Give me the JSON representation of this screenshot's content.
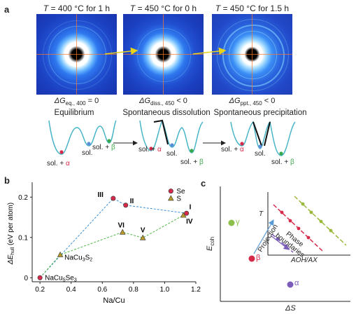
{
  "panel_a": {
    "label": "a",
    "conditions": [
      {
        "var": "T",
        "rest": " = 400 °C for 1 h"
      },
      {
        "var": "T",
        "rest": " = 450 °C for 0 h"
      },
      {
        "var": "T",
        "rest": " = 450 °C for 1.5 h"
      }
    ],
    "energy_labels": [
      {
        "main": "ΔG",
        "sub": "eq., 400",
        "tail": " = 0"
      },
      {
        "main": "ΔG",
        "sub": "diss., 450",
        "tail": " < 0"
      },
      {
        "main": "ΔG",
        "sub": "ppt., 450",
        "tail": " < 0"
      }
    ],
    "stages": [
      "Equilibrium",
      "Spontaneous dissolution",
      "Spontaneous precipitation"
    ],
    "well_labels": {
      "sol": "sol.",
      "sol_plus": "sol. + ",
      "alpha": "α",
      "beta": "β"
    },
    "colors": {
      "pattern_bg": "#1f57d6",
      "alpha": "#d62a4a",
      "beta": "#39a84a",
      "well": "#49b5c8"
    }
  },
  "panel_b": {
    "label": "b",
    "legend": [
      "Se",
      "S"
    ],
    "chart_data": {
      "type": "scatter",
      "xlabel": "Na/Cu",
      "ylabel": "ΔE_hull (eV per atom)",
      "ylabel_main": "ΔE",
      "ylabel_sub": "hull",
      "ylabel_tail": " (eV per atom)",
      "xlim": [
        0.15,
        1.2
      ],
      "ylim": [
        -0.01,
        0.23
      ],
      "xticks": [
        "0.2",
        "0.4",
        "0.6",
        "0.8",
        "1.0",
        "1.2"
      ],
      "yticks": [
        "0",
        "0.1",
        "0.2"
      ],
      "series": [
        {
          "name": "Se",
          "color": "#d62a4a",
          "points": [
            {
              "x": 0.2,
              "y": 0.0,
              "label": "NaCu5Se3"
            },
            {
              "x": 0.67,
              "y": 0.197,
              "label": "III"
            },
            {
              "x": 0.75,
              "y": 0.18,
              "label": "II"
            },
            {
              "x": 1.14,
              "y": 0.16,
              "label": "I"
            }
          ]
        },
        {
          "name": "S",
          "color": "#b89a2a",
          "points": [
            {
              "x": 0.33,
              "y": 0.057,
              "label": "NaCu3S2"
            },
            {
              "x": 0.73,
              "y": 0.113,
              "label": "VI"
            },
            {
              "x": 0.86,
              "y": 0.099,
              "label": "V"
            },
            {
              "x": 1.12,
              "y": 0.155,
              "label": "IV"
            }
          ]
        }
      ],
      "tie_lines": [
        {
          "color": "#3a8fd8",
          "points": [
            [
              0.2,
              0.0
            ],
            [
              0.67,
              0.197
            ],
            [
              0.75,
              0.18
            ],
            [
              1.14,
              0.16
            ]
          ]
        },
        {
          "color": "#52b84b",
          "points": [
            [
              0.2,
              0.0
            ],
            [
              0.33,
              0.057
            ],
            [
              0.73,
              0.113
            ],
            [
              0.86,
              0.099
            ],
            [
              1.12,
              0.155
            ]
          ]
        }
      ]
    },
    "formula_labels": {
      "se": {
        "p1": "NaCu",
        "s1": "5",
        "p2": "Se",
        "s2": "3"
      },
      "s": {
        "p1": "NaCu",
        "s1": "3",
        "p2": "S",
        "s2": "2"
      }
    }
  },
  "panel_c": {
    "label": "c",
    "xlabel": "ΔS",
    "ylabel": "E",
    "ylabel_sub": "coh",
    "phases": [
      "γ",
      "β",
      "α"
    ],
    "inset": {
      "xlabel": "AOH/AX",
      "ylabel": "T",
      "projection": "Projection",
      "phase_boundaries_1": "Phase",
      "phase_boundaries_2": "boundaries"
    },
    "colors": {
      "gamma": "#8cc04a",
      "beta": "#d62a4a",
      "alpha": "#7b5cb8",
      "arrow": "#5b9bd5"
    }
  }
}
